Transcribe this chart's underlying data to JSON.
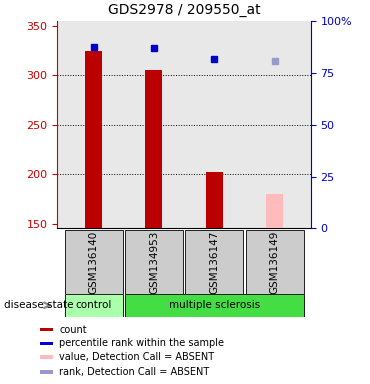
{
  "title": "GDS2978 / 209550_at",
  "samples": [
    "GSM136140",
    "GSM134953",
    "GSM136147",
    "GSM136149"
  ],
  "bar_values": [
    325,
    305,
    202,
    null
  ],
  "bar_color": "#bb0000",
  "absent_bar_values": [
    null,
    null,
    null,
    180
  ],
  "absent_bar_color": "#ffbbbb",
  "rank_values": [
    329,
    328,
    317,
    null
  ],
  "rank_color": "#0000cc",
  "absent_rank_values": [
    null,
    null,
    null,
    315
  ],
  "absent_rank_color": "#9999cc",
  "ylim_left": [
    145,
    355
  ],
  "ylim_right": [
    0,
    100
  ],
  "yticks_left": [
    150,
    200,
    250,
    300,
    350
  ],
  "yticks_right": [
    0,
    25,
    50,
    75,
    100
  ],
  "yticklabels_right": [
    "0",
    "25",
    "50",
    "75",
    "100%"
  ],
  "left_axis_color": "#cc0000",
  "right_axis_color": "#0000cc",
  "disease_state_label": "disease state",
  "group_colors": [
    "#aaffaa",
    "#44dd44"
  ],
  "bar_width": 0.28,
  "x_positions": [
    1,
    2,
    3,
    4
  ],
  "plot_bg": "#e8e8e8",
  "legend_items": [
    {
      "label": "count",
      "color": "#bb0000"
    },
    {
      "label": "percentile rank within the sample",
      "color": "#0000cc"
    },
    {
      "label": "value, Detection Call = ABSENT",
      "color": "#ffbbbb"
    },
    {
      "label": "rank, Detection Call = ABSENT",
      "color": "#9999cc"
    }
  ]
}
